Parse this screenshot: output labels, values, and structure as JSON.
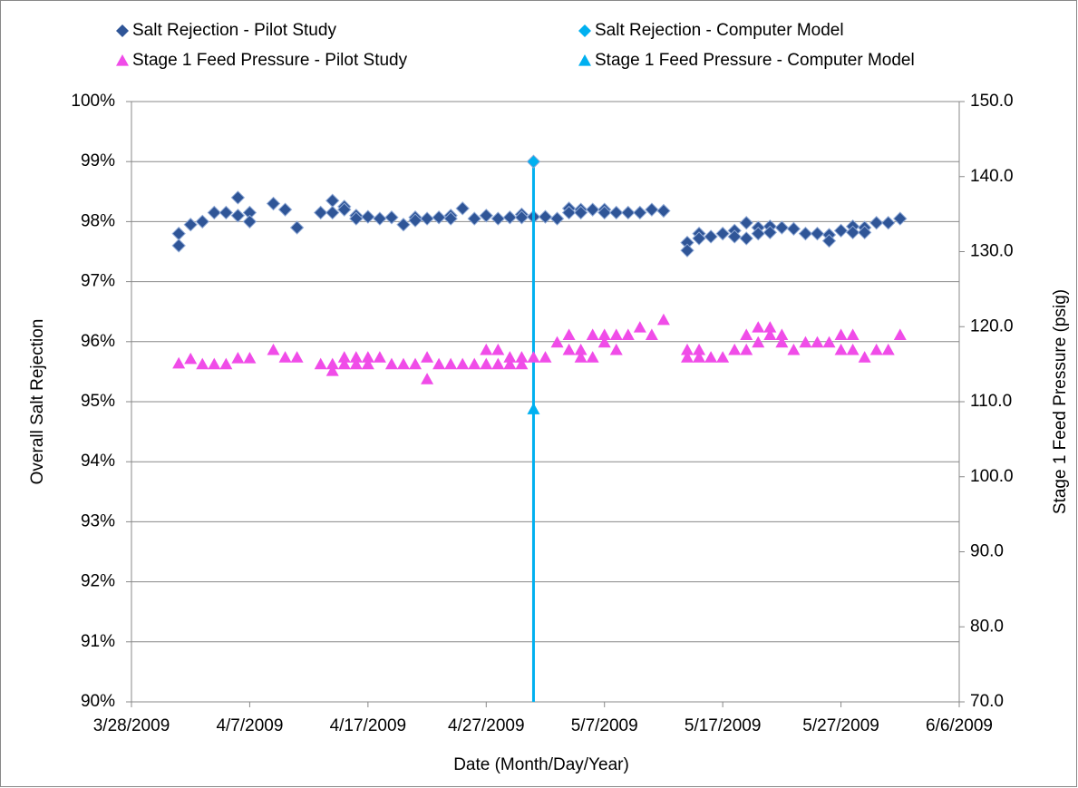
{
  "chart_data": {
    "type": "scatter",
    "x_label": "Date (Month/Day/Year)",
    "y_label": "Overall Salt Rejection",
    "y2_label": "Stage 1 Feed Pressure (psig)",
    "xlim": [
      "3/28/2009",
      "6/6/2009"
    ],
    "xticks": [
      "3/28/2009",
      "4/7/2009",
      "4/17/2009",
      "4/27/2009",
      "5/7/2009",
      "5/17/2009",
      "5/27/2009",
      "6/6/2009"
    ],
    "ylim": [
      90,
      100
    ],
    "yticks": [
      {
        "value": 90,
        "label": "90%"
      },
      {
        "value": 91,
        "label": "91%"
      },
      {
        "value": 92,
        "label": "92%"
      },
      {
        "value": 93,
        "label": "93%"
      },
      {
        "value": 94,
        "label": "94%"
      },
      {
        "value": 95,
        "label": "95%"
      },
      {
        "value": 96,
        "label": "96%"
      },
      {
        "value": 97,
        "label": "97%"
      },
      {
        "value": 98,
        "label": "98%"
      },
      {
        "value": 99,
        "label": "99%"
      },
      {
        "value": 100,
        "label": "100%"
      }
    ],
    "y2lim": [
      70,
      150
    ],
    "y2ticks": [
      {
        "value": 70,
        "label": "70.0"
      },
      {
        "value": 80,
        "label": "80.0"
      },
      {
        "value": 90,
        "label": "90.0"
      },
      {
        "value": 100,
        "label": "100.0"
      },
      {
        "value": 110,
        "label": "110.0"
      },
      {
        "value": 120,
        "label": "120.0"
      },
      {
        "value": 130,
        "label": "130.0"
      },
      {
        "value": 140,
        "label": "140.0"
      },
      {
        "value": 150,
        "label": "150.0"
      }
    ],
    "grid": true,
    "legend": "top",
    "series": [
      {
        "name": "Salt Rejection - Pilot Study",
        "color": "#2f5597",
        "marker": "diamond",
        "x": [
          "4/1/2009",
          "4/1/2009",
          "4/2/2009",
          "4/3/2009",
          "4/4/2009",
          "4/5/2009",
          "4/6/2009",
          "4/6/2009",
          "4/7/2009",
          "4/7/2009",
          "4/9/2009",
          "4/10/2009",
          "4/11/2009",
          "4/13/2009",
          "4/14/2009",
          "4/14/2009",
          "4/15/2009",
          "4/15/2009",
          "4/16/2009",
          "4/16/2009",
          "4/17/2009",
          "4/18/2009",
          "4/19/2009",
          "4/20/2009",
          "4/21/2009",
          "4/21/2009",
          "4/22/2009",
          "4/23/2009",
          "4/24/2009",
          "4/24/2009",
          "4/25/2009",
          "4/26/2009",
          "4/27/2009",
          "4/28/2009",
          "4/29/2009",
          "4/30/2009",
          "4/30/2009",
          "5/1/2009",
          "5/2/2009",
          "5/3/2009",
          "5/4/2009",
          "5/4/2009",
          "5/5/2009",
          "5/5/2009",
          "5/6/2009",
          "5/7/2009",
          "5/7/2009",
          "5/8/2009",
          "5/9/2009",
          "5/10/2009",
          "5/11/2009",
          "5/12/2009",
          "5/14/2009",
          "5/14/2009",
          "5/15/2009",
          "5/15/2009",
          "5/16/2009",
          "5/17/2009",
          "5/18/2009",
          "5/18/2009",
          "5/19/2009",
          "5/19/2009",
          "5/20/2009",
          "5/20/2009",
          "5/21/2009",
          "5/21/2009",
          "5/22/2009",
          "5/23/2009",
          "5/24/2009",
          "5/25/2009",
          "5/26/2009",
          "5/26/2009",
          "5/27/2009",
          "5/28/2009",
          "5/28/2009",
          "5/29/2009",
          "5/29/2009",
          "5/30/2009",
          "5/31/2009",
          "6/1/2009"
        ],
        "values": [
          97.8,
          97.6,
          97.95,
          98,
          98.15,
          98.15,
          98.4,
          98.1,
          98.15,
          98,
          98.3,
          98.2,
          97.9,
          98.15,
          98.35,
          98.15,
          98.25,
          98.2,
          98.1,
          98.05,
          98.08,
          98.05,
          98.07,
          97.95,
          98.07,
          98.02,
          98.05,
          98.07,
          98.1,
          98.05,
          98.22,
          98.05,
          98.1,
          98.05,
          98.07,
          98.12,
          98.07,
          98.08,
          98.08,
          98.05,
          98.22,
          98.15,
          98.2,
          98.15,
          98.2,
          98.2,
          98.15,
          98.15,
          98.15,
          98.15,
          98.2,
          98.18,
          97.65,
          97.52,
          97.8,
          97.72,
          97.75,
          97.8,
          97.85,
          97.75,
          97.98,
          97.72,
          97.9,
          97.8,
          97.92,
          97.82,
          97.9,
          97.88,
          97.8,
          97.8,
          97.78,
          97.68,
          97.85,
          97.92,
          97.82,
          97.9,
          97.82,
          97.98,
          97.98,
          98.05
        ]
      },
      {
        "name": "Salt Rejection - Computer Model",
        "color": "#00b0f0",
        "marker": "diamond",
        "drop_line": true,
        "x": [
          "5/1/2009"
        ],
        "values": [
          99
        ]
      },
      {
        "name": "Stage 1 Feed Pressure - Pilot Study",
        "color": "#f04ce8",
        "marker": "triangle",
        "axis": "y2",
        "x": [
          "4/1/2009",
          "4/2/2009",
          "4/3/2009",
          "4/4/2009",
          "4/5/2009",
          "4/6/2009",
          "4/7/2009",
          "4/9/2009",
          "4/10/2009",
          "4/11/2009",
          "4/13/2009",
          "4/14/2009",
          "4/14/2009",
          "4/15/2009",
          "4/15/2009",
          "4/16/2009",
          "4/16/2009",
          "4/17/2009",
          "4/17/2009",
          "4/18/2009",
          "4/19/2009",
          "4/20/2009",
          "4/21/2009",
          "4/22/2009",
          "4/22/2009",
          "4/23/2009",
          "4/24/2009",
          "4/25/2009",
          "4/26/2009",
          "4/27/2009",
          "4/27/2009",
          "4/28/2009",
          "4/28/2009",
          "4/29/2009",
          "4/29/2009",
          "4/30/2009",
          "4/30/2009",
          "5/1/2009",
          "5/2/2009",
          "5/3/2009",
          "5/4/2009",
          "5/4/2009",
          "5/5/2009",
          "5/5/2009",
          "5/6/2009",
          "5/6/2009",
          "5/7/2009",
          "5/7/2009",
          "5/8/2009",
          "5/8/2009",
          "5/9/2009",
          "5/10/2009",
          "5/11/2009",
          "5/12/2009",
          "5/14/2009",
          "5/14/2009",
          "5/15/2009",
          "5/15/2009",
          "5/16/2009",
          "5/17/2009",
          "5/18/2009",
          "5/19/2009",
          "5/19/2009",
          "5/20/2009",
          "5/20/2009",
          "5/21/2009",
          "5/21/2009",
          "5/22/2009",
          "5/22/2009",
          "5/23/2009",
          "5/24/2009",
          "5/25/2009",
          "5/26/2009",
          "5/27/2009",
          "5/27/2009",
          "5/28/2009",
          "5/28/2009",
          "5/29/2009",
          "5/30/2009",
          "5/31/2009",
          "6/1/2009"
        ],
        "values": [
          115.1,
          115.7,
          115,
          115,
          115,
          115.8,
          115.8,
          116.9,
          115.9,
          115.9,
          115,
          114.1,
          115,
          115.9,
          115,
          115.9,
          115,
          115.9,
          115,
          115.9,
          115,
          115,
          115,
          115.9,
          113,
          115,
          115,
          115,
          115,
          116.9,
          115,
          116.9,
          115,
          115.9,
          115,
          115.9,
          115,
          115.9,
          115.9,
          117.9,
          118.9,
          116.9,
          116.9,
          115.9,
          118.9,
          115.9,
          118.9,
          117.9,
          118.9,
          116.9,
          118.9,
          119.9,
          118.9,
          120.9,
          116.9,
          115.9,
          116.9,
          115.9,
          115.9,
          115.9,
          116.9,
          118.9,
          116.9,
          119.9,
          117.9,
          119.9,
          118.9,
          118.9,
          117.9,
          116.9,
          117.9,
          117.9,
          117.9,
          118.9,
          116.9,
          118.9,
          116.9,
          115.9,
          116.9,
          116.9,
          118.9
        ]
      },
      {
        "name": "Stage 1 Feed Pressure - Computer Model",
        "color": "#00b0f0",
        "marker": "triangle",
        "axis": "y2",
        "x": [
          "5/1/2009"
        ],
        "values": [
          109
        ]
      }
    ]
  }
}
